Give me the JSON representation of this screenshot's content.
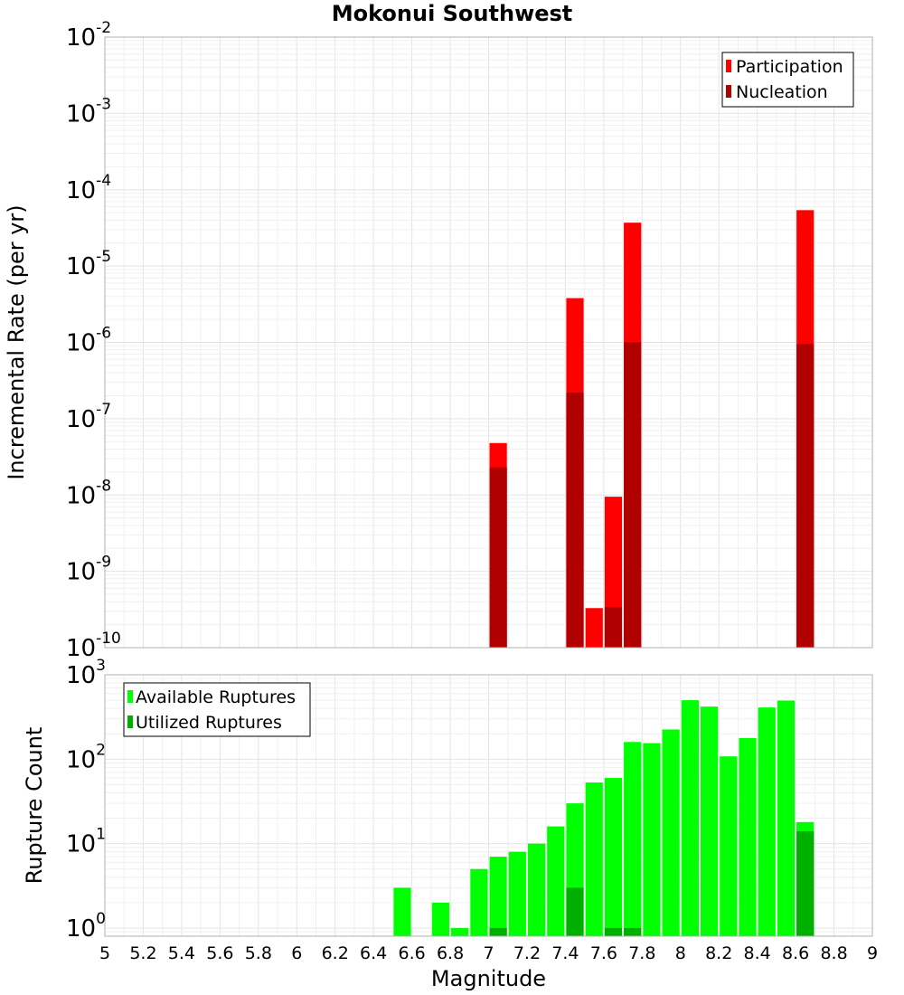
{
  "title": "Mokonui Southwest",
  "xlabel": "Magnitude",
  "x_ticks": [
    "5",
    "5.2",
    "5.4",
    "5.6",
    "5.8",
    "6",
    "6.2",
    "6.4",
    "6.6",
    "6.8",
    "7",
    "7.2",
    "7.4",
    "7.6",
    "7.8",
    "8",
    "8.2",
    "8.4",
    "8.6",
    "8.8",
    "9"
  ],
  "colors": {
    "participation": "#ff0000",
    "nucleation": "#b00000",
    "available": "#00ff00",
    "utilized": "#00b000",
    "grid": "#e4e4e4",
    "frame": "#b0b0b0"
  },
  "chart_data": [
    {
      "type": "bar",
      "ylabel": "Incremental Rate (per yr)",
      "y_scale": "log",
      "ylim": [
        1e-10,
        0.01
      ],
      "xlim": [
        5,
        9
      ],
      "bin_width": 0.1,
      "legend_position": "top-right",
      "y_ticks": [
        {
          "base": "10",
          "exp": "-2"
        },
        {
          "base": "10",
          "exp": "-3"
        },
        {
          "base": "10",
          "exp": "-4"
        },
        {
          "base": "10",
          "exp": "-5"
        },
        {
          "base": "10",
          "exp": "-6"
        },
        {
          "base": "10",
          "exp": "-7"
        },
        {
          "base": "10",
          "exp": "-8"
        },
        {
          "base": "10",
          "exp": "-9"
        },
        {
          "base": "10",
          "exp": "-10"
        }
      ],
      "series": [
        {
          "name": "Participation",
          "x": [
            7.05,
            7.45,
            7.55,
            7.65,
            7.75,
            8.65
          ],
          "values": [
            4.8e-08,
            3.8e-06,
            3.3e-10,
            9.5e-09,
            3.7e-05,
            5.4e-05
          ]
        },
        {
          "name": "Nucleation",
          "x": [
            7.05,
            7.45,
            7.65,
            7.75,
            8.65
          ],
          "values": [
            2.3e-08,
            2.2e-07,
            3.4e-10,
            1e-06,
            9.5e-07
          ]
        }
      ]
    },
    {
      "type": "bar",
      "ylabel": "Rupture Count",
      "y_scale": "log",
      "ylim": [
        0.8,
        1000
      ],
      "xlim": [
        5,
        9
      ],
      "bin_width": 0.1,
      "legend_position": "top-left",
      "y_ticks": [
        {
          "base": "10",
          "exp": "3"
        },
        {
          "base": "10",
          "exp": "2"
        },
        {
          "base": "10",
          "exp": "1"
        },
        {
          "base": "10",
          "exp": "0"
        }
      ],
      "series": [
        {
          "name": "Available Ruptures",
          "x": [
            6.55,
            6.75,
            6.85,
            6.95,
            7.05,
            7.15,
            7.25,
            7.35,
            7.45,
            7.55,
            7.65,
            7.75,
            7.85,
            7.95,
            8.05,
            8.15,
            8.25,
            8.35,
            8.45,
            8.55,
            8.65
          ],
          "values": [
            3,
            2,
            1,
            5,
            7,
            8,
            10,
            16,
            30,
            53,
            60,
            160,
            155,
            225,
            500,
            420,
            108,
            178,
            410,
            495,
            18
          ]
        },
        {
          "name": "Utilized Ruptures",
          "x": [
            7.05,
            7.45,
            7.65,
            7.75,
            8.65
          ],
          "values": [
            1,
            3,
            1,
            1,
            14
          ]
        }
      ]
    }
  ]
}
